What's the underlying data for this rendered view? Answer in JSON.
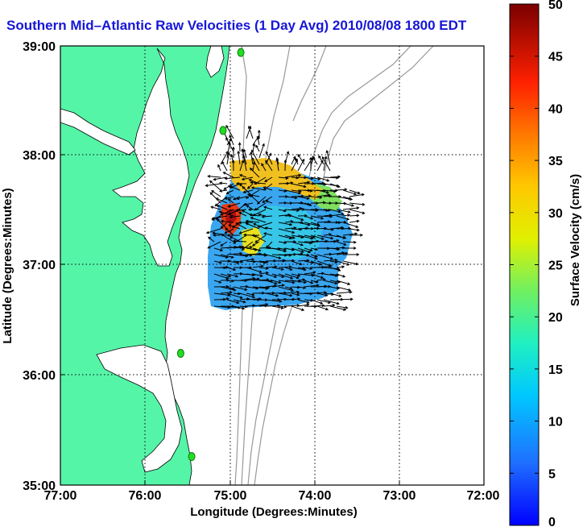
{
  "title": "Southern Mid–Atlantic Raw Velocities (1 Day Avg) 2010/08/08 1800 EDT",
  "xlabel": "Longitude (Degrees:Minutes)",
  "ylabel": "Latitude (Degrees:Minutes)",
  "x_ticks": [
    "77:00",
    "76:00",
    "75:00",
    "74:00",
    "73:00",
    "72:00"
  ],
  "y_ticks": [
    "39:00",
    "38:00",
    "37:00",
    "36:00",
    "35:00"
  ],
  "colorbar": {
    "label": "Surface Velocity (cm/s)",
    "ticks": [
      "50",
      "45",
      "40",
      "35",
      "30",
      "25",
      "20",
      "15",
      "10",
      "5",
      "0"
    ],
    "range": [
      0,
      50
    ]
  },
  "colors": {
    "land": "#55f5a8",
    "water": "#ffffff",
    "title": "#1616d8",
    "isobath": "#999999",
    "station": "#22dd22"
  },
  "map": {
    "lon_range": [
      -77,
      -72
    ],
    "lat_range": [
      35,
      39
    ],
    "stations": [
      {
        "lon": -74.87,
        "lat": 38.94
      },
      {
        "lon": -75.08,
        "lat": 38.23
      },
      {
        "lon": -75.58,
        "lat": 36.2
      },
      {
        "lon": -75.45,
        "lat": 35.26
      }
    ]
  }
}
